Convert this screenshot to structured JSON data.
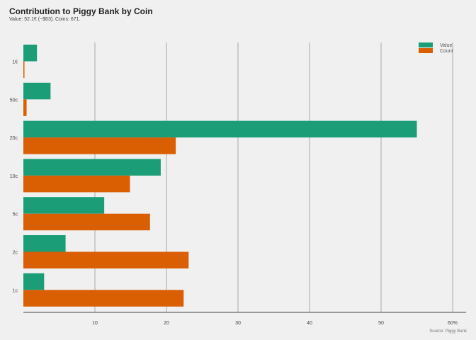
{
  "chart_data": {
    "type": "bar",
    "orientation": "horizontal",
    "title": "Contribution to Piggy Bank by Coin",
    "subtitle": "Value: 52.1€ (~$63). Coins: 671.",
    "caption": "Source: Piggy Bank",
    "categories": [
      "1€",
      "50c",
      "20c",
      "10c",
      "5c",
      "2c",
      "1c"
    ],
    "series": [
      {
        "name": "Value",
        "color": "#1b9e77",
        "values": [
          1.9,
          3.8,
          55.0,
          19.2,
          11.3,
          5.9,
          2.9
        ]
      },
      {
        "name": "Count",
        "color": "#d95f02",
        "values": [
          0.15,
          0.45,
          21.3,
          14.9,
          17.7,
          23.1,
          22.4
        ]
      }
    ],
    "x_ticks": [
      "10",
      "20",
      "30",
      "40",
      "50",
      "60%"
    ],
    "x_tick_values": [
      10,
      20,
      30,
      40,
      50,
      60
    ],
    "xlim": [
      0,
      62
    ],
    "grid": true,
    "legend_position": "top-right"
  }
}
